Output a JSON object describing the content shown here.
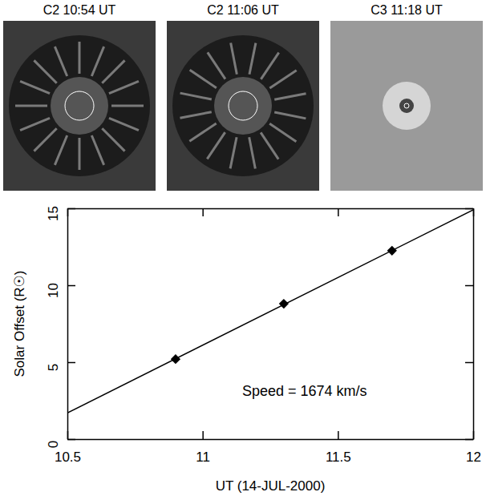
{
  "panels": [
    {
      "title": "C2 10:54 UT"
    },
    {
      "title": "C2 11:06 UT"
    },
    {
      "title": "C3 11:18 UT"
    }
  ],
  "chart_data": {
    "type": "scatter",
    "xlabel": "UT (14-JUL-2000)",
    "ylabel": "Solar Offset (R☉)",
    "annotation": "Speed = 1674 km/s",
    "series": [
      {
        "type": "scatter",
        "marker": "diamond",
        "color": "#000000",
        "x": [
          10.9,
          11.3,
          11.7
        ],
        "values": [
          5.2,
          8.8,
          12.25
        ]
      },
      {
        "type": "line",
        "line_style": "solid",
        "color": "#000000",
        "x": [
          10.5,
          12
        ],
        "values": [
          1.7,
          14.9
        ]
      }
    ],
    "xlim": [
      10.5,
      12
    ],
    "xticks": [
      10.5,
      11,
      11.5,
      12
    ],
    "ylim": [
      0,
      15
    ],
    "yticks": [
      0,
      5,
      10,
      15
    ],
    "grid": false
  }
}
